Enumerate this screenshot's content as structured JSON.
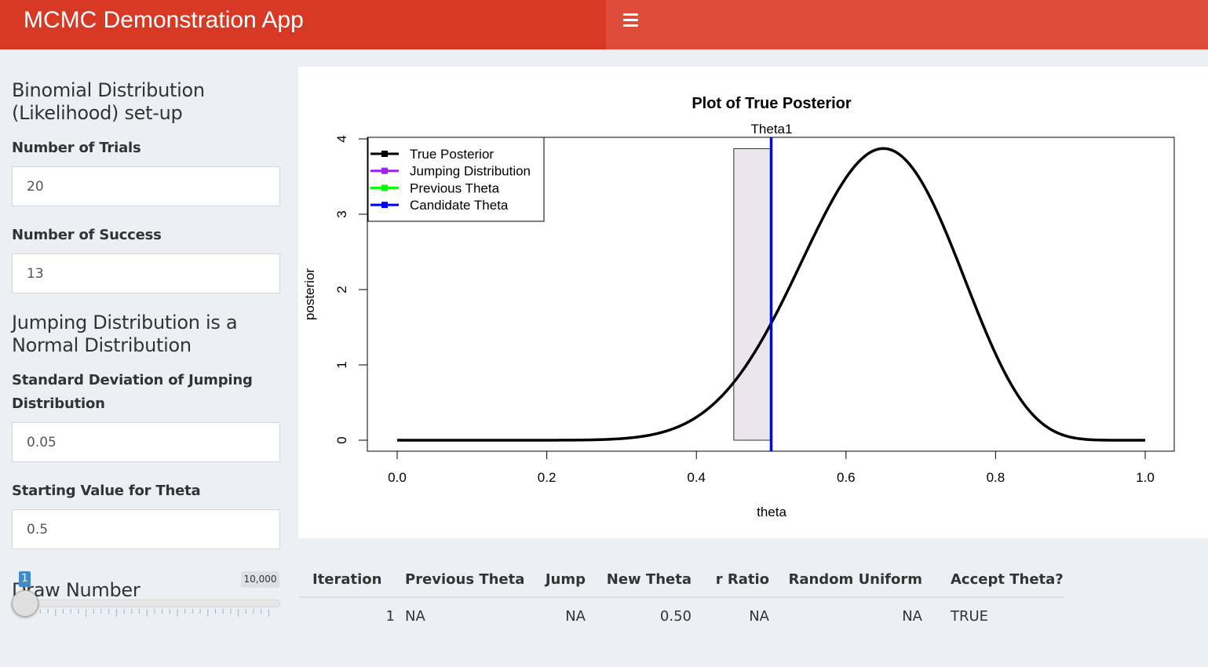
{
  "header": {
    "title": "MCMC Demonstration App",
    "menu_icon": "hamburger-menu-icon",
    "color_left": "#d73925",
    "color_right": "#dd4b39"
  },
  "sidebar": {
    "binomial_heading": "Binomial Distribution (Likelihood) set-up",
    "trials_label": "Number of Trials",
    "trials_value": "20",
    "success_label": "Number of Success",
    "success_value": "13",
    "jumping_heading": "Jumping Distribution is a Normal Distribution",
    "sd_label": "Standard Deviation of Jumping Distribution",
    "sd_value": "0.05",
    "start_label": "Starting Value for Theta",
    "start_value": "0.5",
    "draw_heading": "Draw Number",
    "slider_min": "1",
    "slider_max": "10,000",
    "slider_value": 1
  },
  "plot": {
    "title": "Plot of True Posterior",
    "top_label": "Theta1",
    "xlabel": "theta",
    "ylabel": "posterior",
    "legend": [
      "True Posterior",
      "Jumping Distribution",
      "Previous Theta",
      "Candidate Theta"
    ]
  },
  "chart_data": {
    "type": "line",
    "title": "Plot of True Posterior",
    "xlabel": "theta",
    "ylabel": "posterior",
    "xlim": [
      0,
      1
    ],
    "ylim": [
      0,
      4
    ],
    "x_ticks": [
      "0.0",
      "0.2",
      "0.4",
      "0.6",
      "0.8",
      "1.0"
    ],
    "y_ticks": [
      "0",
      "1",
      "2",
      "3",
      "4"
    ],
    "legend_position": "top-left",
    "series": [
      {
        "name": "True Posterior",
        "color": "#000000",
        "distribution": "beta",
        "params": [
          14,
          8
        ]
      },
      {
        "name": "Jumping Distribution",
        "color": "#a020f0",
        "values": []
      },
      {
        "name": "Previous Theta",
        "color": "#00ff00",
        "values": []
      },
      {
        "name": "Candidate Theta",
        "color": "#0000ff",
        "x": 0.5
      }
    ],
    "histogram": {
      "bins": [
        {
          "x0": 0.45,
          "x1": 0.5,
          "height": 3.87
        }
      ],
      "fill": "#ebe6ec"
    },
    "annotations": [
      {
        "text": "Theta1",
        "x": 0.5
      }
    ]
  },
  "table": {
    "headers": [
      "Iteration",
      "Previous Theta",
      "Jump",
      "New Theta",
      "r Ratio",
      "Random Uniform",
      "Accept Theta?"
    ],
    "rows": [
      [
        "1",
        "NA",
        "NA",
        "0.50",
        "NA",
        "NA",
        "TRUE"
      ]
    ]
  }
}
